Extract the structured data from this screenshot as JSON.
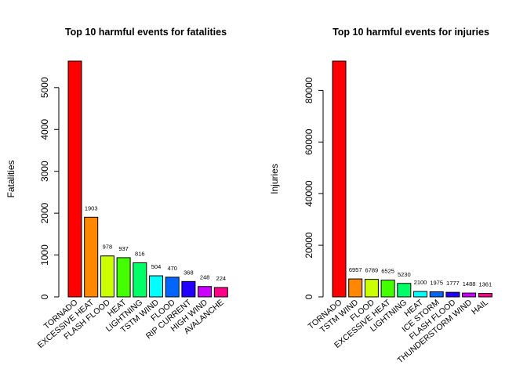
{
  "chart_data": [
    {
      "type": "bar",
      "title": "Top 10 harmful events for fatalities",
      "xlabel": "",
      "ylabel": "Fatalities",
      "categories": [
        "TORNADO",
        "EXCESSIVE HEAT",
        "FLASH FLOOD",
        "HEAT",
        "LIGHTNING",
        "TSTM WIND",
        "FLOOD",
        "RIP CURRENT",
        "HIGH WIND",
        "AVALANCHE"
      ],
      "values": [
        5633,
        1903,
        978,
        937,
        816,
        504,
        470,
        368,
        248,
        224
      ],
      "value_labels": [
        "",
        "1903",
        "978",
        "937",
        "816",
        "504",
        "470",
        "368",
        "248",
        "224"
      ],
      "yticks": [
        0,
        1000,
        2000,
        3000,
        4000,
        5000
      ],
      "ylim": [
        0,
        5633
      ],
      "colors": [
        "#FF0000",
        "#FF8800",
        "#CCFF00",
        "#44FF00",
        "#00FF66",
        "#00FFFF",
        "#0066FF",
        "#2200FF",
        "#CC00FF",
        "#FF0088"
      ]
    },
    {
      "type": "bar",
      "title": "Top 10 harmful events for injuries",
      "xlabel": "",
      "ylabel": "Injuries",
      "categories": [
        "TORNADO",
        "TSTM WIND",
        "FLOOD",
        "EXCESSIVE HEAT",
        "LIGHTNING",
        "HEAT",
        "ICE STORM",
        "FLASH FLOOD",
        "THUNDERSTORM WIND",
        "HAIL"
      ],
      "values": [
        91346,
        6957,
        6789,
        6525,
        5230,
        2100,
        1975,
        1777,
        1488,
        1361
      ],
      "value_labels": [
        "",
        "6957",
        "6789",
        "6525",
        "5230",
        "2100",
        "1975",
        "1777",
        "1488",
        "1361"
      ],
      "yticks": [
        0,
        20000,
        40000,
        60000,
        80000
      ],
      "ylim": [
        0,
        91346
      ],
      "colors": [
        "#FF0000",
        "#FF8800",
        "#CCFF00",
        "#44FF00",
        "#00FF66",
        "#00FFFF",
        "#0066FF",
        "#2200FF",
        "#CC00FF",
        "#FF0088"
      ]
    }
  ]
}
